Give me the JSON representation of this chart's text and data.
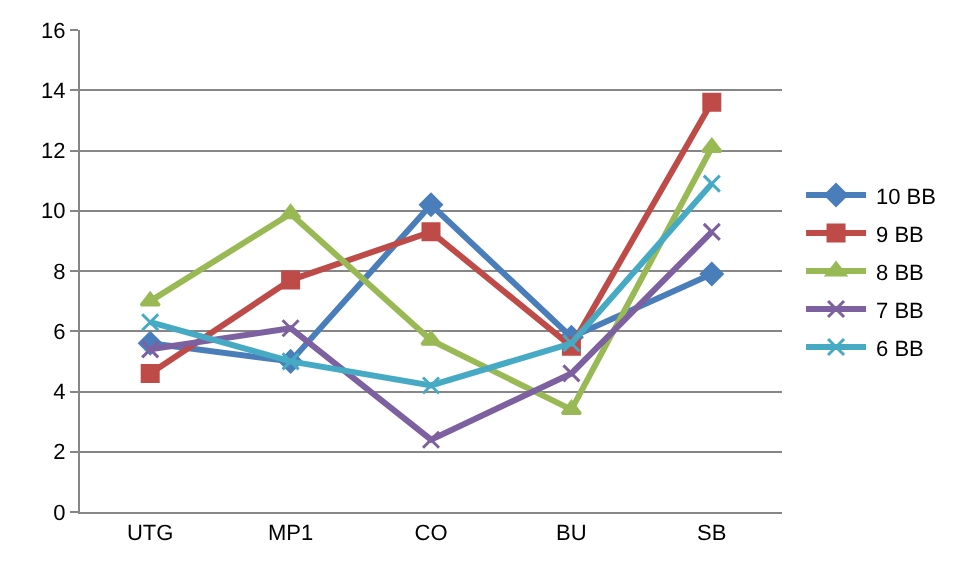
{
  "chart_data": {
    "type": "line",
    "categories": [
      "UTG",
      "MP1",
      "CO",
      "BU",
      "SB"
    ],
    "series": [
      {
        "name": "10 BB",
        "color": "#4a7ebb",
        "marker": "diamond",
        "values": [
          5.6,
          5.0,
          10.2,
          5.8,
          7.9
        ]
      },
      {
        "name": "9 BB",
        "color": "#be4b48",
        "marker": "square",
        "values": [
          4.6,
          7.7,
          9.3,
          5.5,
          13.6
        ]
      },
      {
        "name": "8 BB",
        "color": "#98b954",
        "marker": "triangle",
        "values": [
          7.0,
          9.9,
          5.7,
          3.4,
          12.1
        ]
      },
      {
        "name": "7 BB",
        "color": "#7d60a0",
        "marker": "cross",
        "values": [
          5.4,
          6.1,
          2.4,
          4.6,
          9.3
        ]
      },
      {
        "name": "6 BB",
        "color": "#46aac5",
        "marker": "cross",
        "values": [
          6.3,
          5.0,
          4.2,
          5.6,
          10.9
        ]
      }
    ],
    "ylim": [
      0,
      16
    ],
    "yticks": [
      0,
      2,
      4,
      6,
      8,
      10,
      12,
      14,
      16
    ],
    "grid": "y",
    "legend": "right"
  }
}
